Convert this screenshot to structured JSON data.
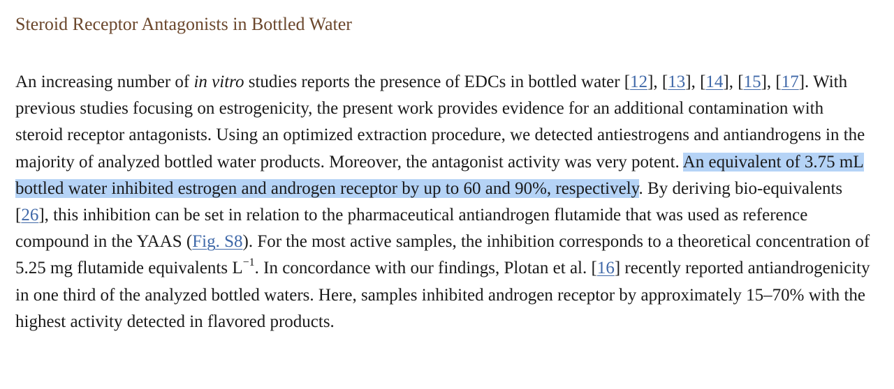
{
  "section": {
    "title": "Steroid Receptor Antagonists in Bottled Water"
  },
  "colors": {
    "title": "#6b472c",
    "link": "#3f68a8",
    "highlight": "#b5d3f6",
    "text": "#1a1a1a"
  },
  "paragraph": {
    "s0": "An increasing number of ",
    "s1": "in vitro",
    "s2": " studies reports the presence of EDCs in bottled water [",
    "r12": "12",
    "s3": "], [",
    "r13": "13",
    "s4": "], [",
    "r14": "14",
    "s5": "], [",
    "r15": "15",
    "s6": "], [",
    "r17": "17",
    "s7": "]. With previous studies focusing on estrogenicity, the present work provides evidence for an additional contamination with steroid receptor antagonists. Using an optimized extraction procedure, we detected antiestrogens and antiandrogens in the majority of analyzed bottled water products. Moreover, the antagonist activity was very potent. ",
    "highlighted": "An equivalent of 3.75 mL bottled water inhibited estrogen and androgen receptor by up to 60 and 90%, respectively",
    "s8": ". By deriving bio-equivalents [",
    "r26": "26",
    "s9": "], this inhibition can be set in relation to the pharmaceutical antiandrogen flutamide that was used as reference compound in the YAAS (",
    "fig": "Fig. S8",
    "s10": "). For the most active samples, the inhibition corresponds to a theoretical concentration of 5.25 mg flutamide equivalents L",
    "sup": "−1",
    "s11": ". In concordance with our findings, Plotan et al. [",
    "r16": "16",
    "s12": "] recently reported antiandrogenicity in one third of the analyzed bottled waters. Here, samples inhibited androgen receptor by approximately 15–70% with the highest activity detected in flavored products."
  }
}
